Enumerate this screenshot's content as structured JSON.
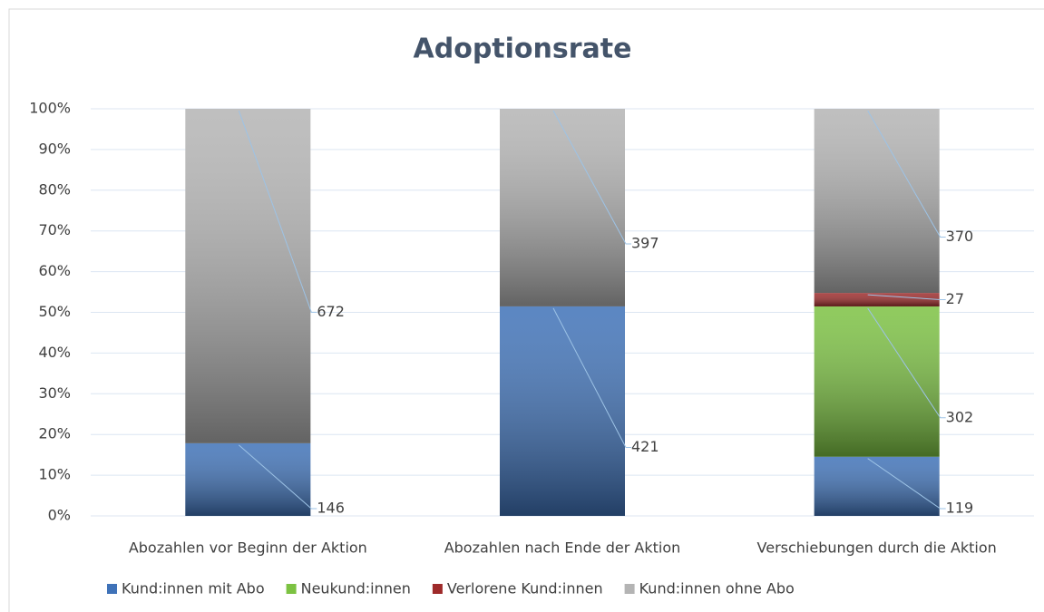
{
  "chart_data": {
    "type": "stacked_percent_bar",
    "title": "Adoptionsrate",
    "categories": [
      "Abozahlen vor Beginn der Aktion",
      "Abozahlen nach Ende der Aktion",
      "Verschiebungen durch die Aktion"
    ],
    "series": [
      {
        "name": "Kund:innen mit Abo",
        "color": "#3f72b8",
        "values": [
          146,
          421,
          119
        ]
      },
      {
        "name": "Neukund:innen",
        "color": "#7cc242",
        "values": [
          null,
          null,
          302
        ]
      },
      {
        "name": "Verlorene Kund:innen",
        "color": "#9e2a2a",
        "values": [
          null,
          null,
          27
        ]
      },
      {
        "name": "Kund:innen ohne Abo",
        "color": "#b4b4b4",
        "values": [
          672,
          397,
          370
        ]
      }
    ],
    "ylim": [
      0,
      100
    ],
    "yticks": [
      {
        "value": 0,
        "label": "0%"
      },
      {
        "value": 10,
        "label": "10%"
      },
      {
        "value": 20,
        "label": "20%"
      },
      {
        "value": 30,
        "label": "30%"
      },
      {
        "value": 40,
        "label": "40%"
      },
      {
        "value": 50,
        "label": "50%"
      },
      {
        "value": 60,
        "label": "60%"
      },
      {
        "value": 70,
        "label": "70%"
      },
      {
        "value": 80,
        "label": "80%"
      },
      {
        "value": 90,
        "label": "90%"
      },
      {
        "value": 100,
        "label": "100%"
      }
    ],
    "grid": true,
    "legend": "bottom"
  }
}
